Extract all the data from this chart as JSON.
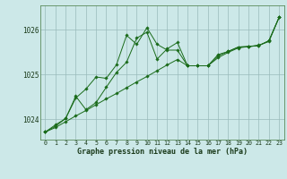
{
  "xlabel": "Graphe pression niveau de la mer (hPa)",
  "hours": [
    0,
    1,
    2,
    3,
    4,
    5,
    6,
    7,
    8,
    9,
    10,
    11,
    12,
    13,
    14,
    15,
    16,
    17,
    18,
    19,
    20,
    21,
    22,
    23
  ],
  "smooth": [
    1023.72,
    1023.82,
    1023.95,
    1024.08,
    1024.2,
    1024.33,
    1024.46,
    1024.58,
    1024.71,
    1024.84,
    1024.96,
    1025.09,
    1025.22,
    1025.34,
    1025.2,
    1025.2,
    1025.2,
    1025.38,
    1025.5,
    1025.6,
    1025.63,
    1025.66,
    1025.74,
    1026.28
  ],
  "upper": [
    1023.72,
    1023.88,
    1024.02,
    1024.52,
    1024.22,
    1024.38,
    1024.72,
    1025.05,
    1025.28,
    1025.82,
    1025.95,
    1025.35,
    1025.58,
    1025.72,
    1025.2,
    1025.2,
    1025.2,
    1025.42,
    1025.52,
    1025.62,
    1025.63,
    1025.65,
    1025.76,
    1026.28
  ],
  "lower": [
    1023.72,
    1023.85,
    1024.02,
    1024.48,
    1024.68,
    1024.95,
    1024.92,
    1025.22,
    1025.88,
    1025.68,
    1026.05,
    1025.68,
    1025.55,
    1025.55,
    1025.2,
    1025.2,
    1025.2,
    1025.45,
    1025.52,
    1025.62,
    1025.63,
    1025.65,
    1025.76,
    1026.28
  ],
  "line_color": "#1a6b1a",
  "bg_color": "#cce8e8",
  "grid_color": "#99bbbb",
  "ylim": [
    1023.55,
    1026.55
  ],
  "yticks": [
    1024,
    1025,
    1026
  ],
  "xlim": [
    -0.5,
    23.5
  ]
}
